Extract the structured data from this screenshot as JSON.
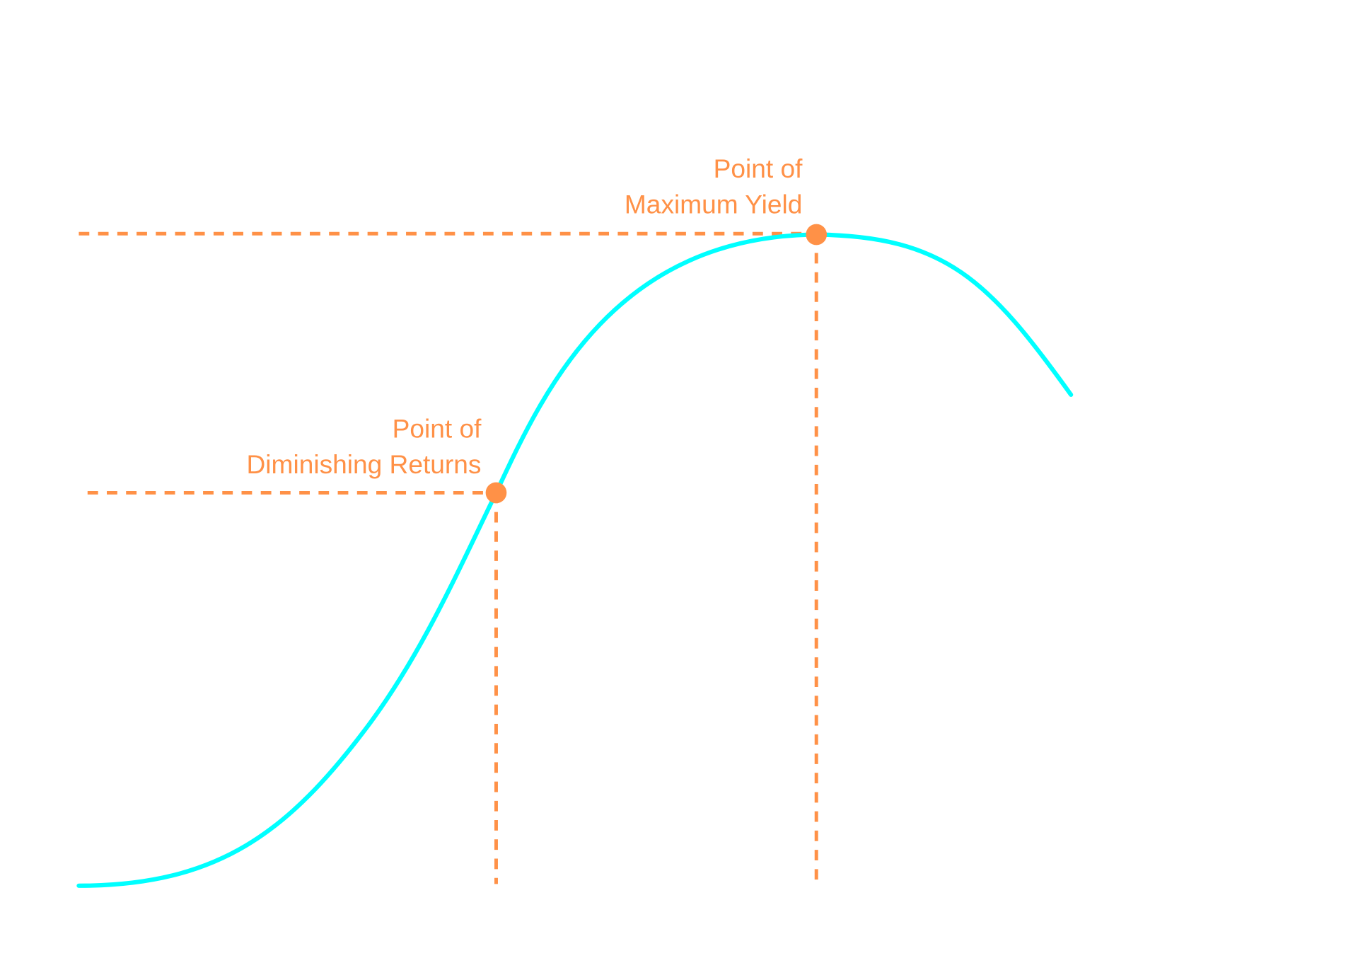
{
  "annotations": [
    {
      "lines": [
        "Point of",
        "Maximum Yield"
      ]
    },
    {
      "lines": [
        "Point of",
        "Diminishing Returns"
      ]
    }
  ]
}
